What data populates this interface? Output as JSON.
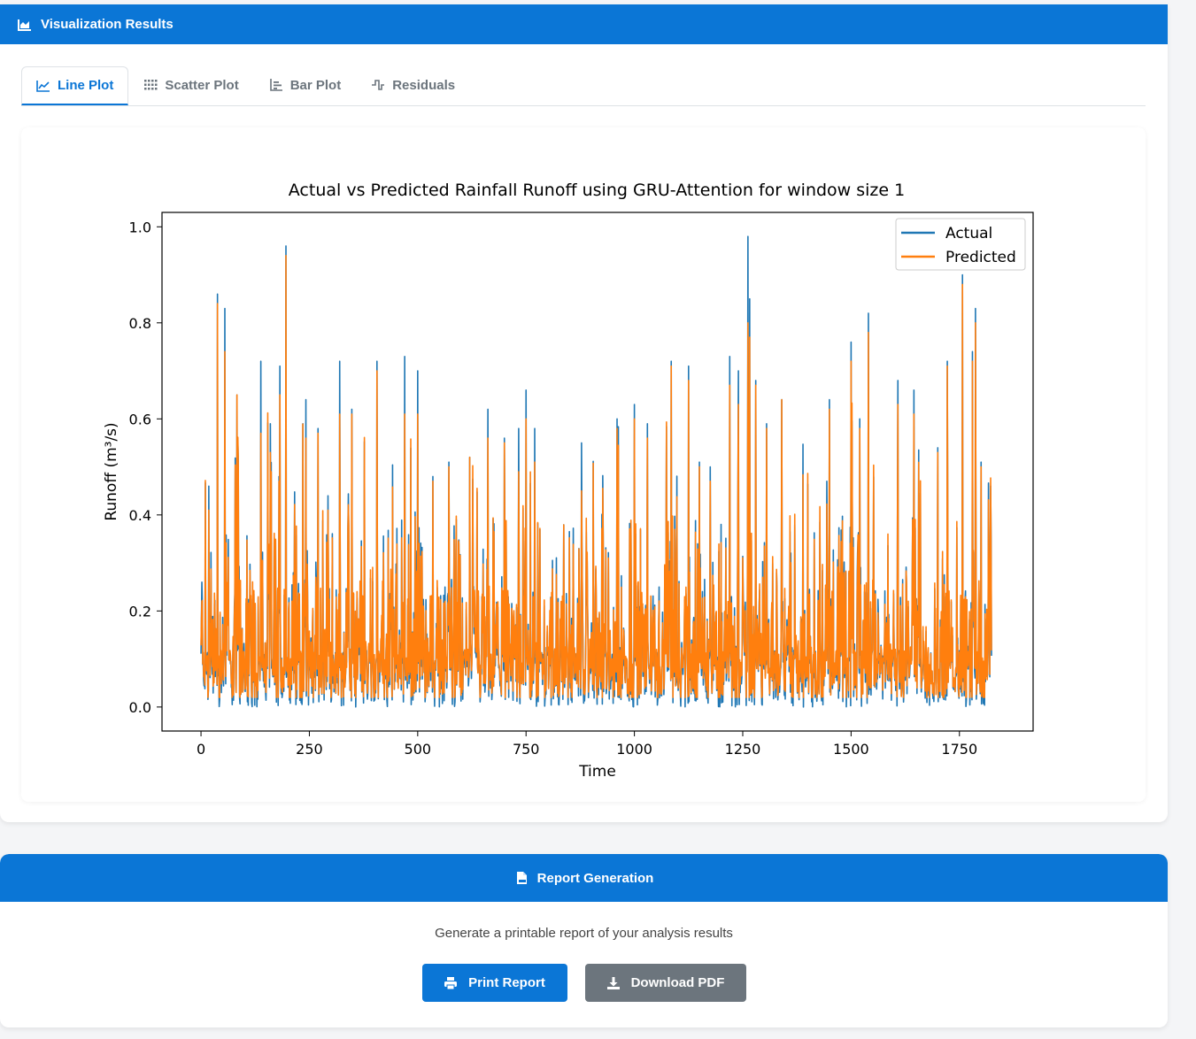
{
  "viz_panel": {
    "title": "Visualization Results",
    "tabs": [
      {
        "label": "Line Plot",
        "active": true,
        "icon": "line-chart-icon"
      },
      {
        "label": "Scatter Plot",
        "active": false,
        "icon": "scatter-grid-icon"
      },
      {
        "label": "Bar Plot",
        "active": false,
        "icon": "bar-chart-icon"
      },
      {
        "label": "Residuals",
        "active": false,
        "icon": "residuals-icon"
      }
    ]
  },
  "chart_data": {
    "type": "line",
    "title": "Actual vs Predicted Rainfall Runoff using GRU-Attention for window size 1",
    "xlabel": "Time",
    "ylabel": "Runoff (m³/s)",
    "xlim": [
      -90,
      1920
    ],
    "ylim": [
      -0.05,
      1.03
    ],
    "xticks": [
      0,
      250,
      500,
      750,
      1000,
      1250,
      1500,
      1750
    ],
    "yticks": [
      "0.0",
      "0.2",
      "0.4",
      "0.6",
      "0.8",
      "1.0"
    ],
    "legend_position": "top-right",
    "n_points": 1825,
    "series": [
      {
        "name": "Actual",
        "color": "#1f77b4"
      },
      {
        "name": "Predicted",
        "color": "#ff7f0e"
      }
    ],
    "peaks": [
      {
        "x": 2,
        "actual": 0.26,
        "predicted": 0.22
      },
      {
        "x": 18,
        "actual": 0.46,
        "predicted": 0.41
      },
      {
        "x": 38,
        "actual": 0.86,
        "predicted": 0.84
      },
      {
        "x": 55,
        "actual": 0.83,
        "predicted": 0.74
      },
      {
        "x": 83,
        "actual": 0.65,
        "predicted": 0.65
      },
      {
        "x": 138,
        "actual": 0.72,
        "predicted": 0.57
      },
      {
        "x": 160,
        "actual": 0.59,
        "predicted": 0.53
      },
      {
        "x": 180,
        "actual": 0.48,
        "predicted": 0.47
      },
      {
        "x": 182,
        "actual": 0.71,
        "predicted": 0.65
      },
      {
        "x": 196,
        "actual": 0.96,
        "predicted": 0.94
      },
      {
        "x": 242,
        "actual": 0.64,
        "predicted": 0.56
      },
      {
        "x": 270,
        "actual": 0.58,
        "predicted": 0.57
      },
      {
        "x": 293,
        "actual": 0.44,
        "predicted": 0.41
      },
      {
        "x": 320,
        "actual": 0.72,
        "predicted": 0.61
      },
      {
        "x": 348,
        "actual": 0.62,
        "predicted": 0.61
      },
      {
        "x": 406,
        "actual": 0.72,
        "predicted": 0.7
      },
      {
        "x": 470,
        "actual": 0.73,
        "predicted": 0.61
      },
      {
        "x": 500,
        "actual": 0.7,
        "predicted": 0.61
      },
      {
        "x": 535,
        "actual": 0.48,
        "predicted": 0.47
      },
      {
        "x": 572,
        "actual": 0.51,
        "predicted": 0.5
      },
      {
        "x": 620,
        "actual": 0.52,
        "predicted": 0.52
      },
      {
        "x": 662,
        "actual": 0.62,
        "predicted": 0.56
      },
      {
        "x": 700,
        "actual": 0.56,
        "predicted": 0.55
      },
      {
        "x": 733,
        "actual": 0.58,
        "predicted": 0.49
      },
      {
        "x": 750,
        "actual": 0.66,
        "predicted": 0.6
      },
      {
        "x": 770,
        "actual": 0.58,
        "predicted": 0.51
      },
      {
        "x": 878,
        "actual": 0.55,
        "predicted": 0.45
      },
      {
        "x": 960,
        "actual": 0.6,
        "predicted": 0.58
      },
      {
        "x": 1000,
        "actual": 0.63,
        "predicted": 0.6
      },
      {
        "x": 1030,
        "actual": 0.59,
        "predicted": 0.56
      },
      {
        "x": 1085,
        "actual": 0.72,
        "predicted": 0.71
      },
      {
        "x": 1125,
        "actual": 0.71,
        "predicted": 0.68
      },
      {
        "x": 1150,
        "actual": 0.51,
        "predicted": 0.5
      },
      {
        "x": 1175,
        "actual": 0.5,
        "predicted": 0.47
      },
      {
        "x": 1220,
        "actual": 0.73,
        "predicted": 0.67
      },
      {
        "x": 1240,
        "actual": 0.7,
        "predicted": 0.63
      },
      {
        "x": 1262,
        "actual": 0.98,
        "predicted": 0.8
      },
      {
        "x": 1266,
        "actual": 0.85,
        "predicted": 0.77
      },
      {
        "x": 1280,
        "actual": 0.68,
        "predicted": 0.67
      },
      {
        "x": 1305,
        "actual": 0.59,
        "predicted": 0.58
      },
      {
        "x": 1340,
        "actual": 0.64,
        "predicted": 0.64
      },
      {
        "x": 1450,
        "actual": 0.64,
        "predicted": 0.62
      },
      {
        "x": 1500,
        "actual": 0.76,
        "predicted": 0.72
      },
      {
        "x": 1520,
        "actual": 0.6,
        "predicted": 0.58
      },
      {
        "x": 1540,
        "actual": 0.82,
        "predicted": 0.78
      },
      {
        "x": 1608,
        "actual": 0.68,
        "predicted": 0.63
      },
      {
        "x": 1645,
        "actual": 0.66,
        "predicted": 0.61
      },
      {
        "x": 1700,
        "actual": 0.54,
        "predicted": 0.53
      },
      {
        "x": 1722,
        "actual": 0.72,
        "predicted": 0.71
      },
      {
        "x": 1757,
        "actual": 0.9,
        "predicted": 0.88
      },
      {
        "x": 1780,
        "actual": 0.74,
        "predicted": 0.72
      },
      {
        "x": 1787,
        "actual": 0.83,
        "predicted": 0.8
      },
      {
        "x": 1800,
        "actual": 0.51,
        "predicted": 0.5
      }
    ]
  },
  "report_panel": {
    "title": "Report Generation",
    "description": "Generate a printable report of your analysis results",
    "print_label": "Print Report",
    "pdf_label": "Download PDF"
  }
}
